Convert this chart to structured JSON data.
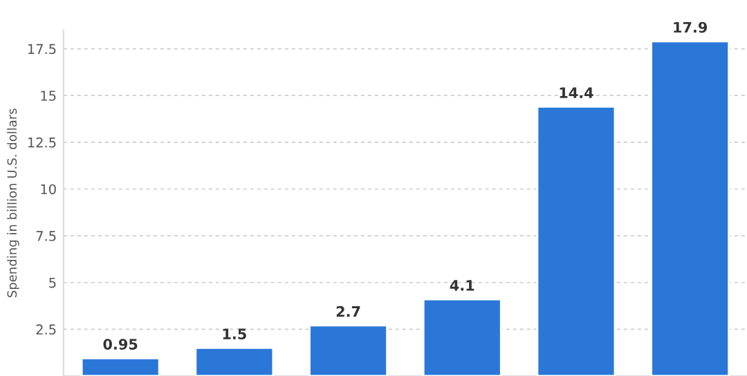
{
  "chart_data": {
    "type": "bar",
    "ylabel": "Spending in billion U.S. dollars",
    "categories": [
      null,
      null,
      null,
      null,
      null,
      null
    ],
    "values": [
      0.95,
      1.5,
      2.7,
      4.1,
      14.4,
      17.9
    ],
    "color": "#2a77d8",
    "ylim": [
      0,
      18.5
    ],
    "yticks": [
      2.5,
      5,
      7.5,
      10,
      12.5,
      15,
      17.5
    ],
    "grid": "y",
    "data_labels": true
  }
}
